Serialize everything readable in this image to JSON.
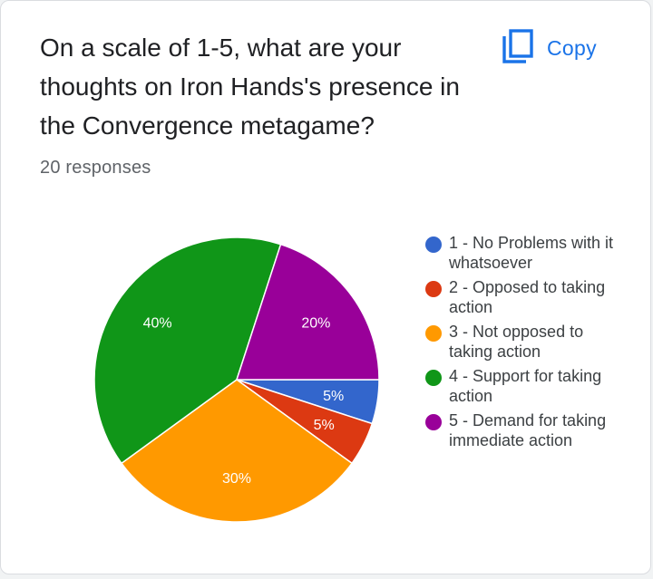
{
  "question": {
    "title": "On a scale of 1-5, what are your\nthoughts on Iron Hands's presence in\nthe Convergence metagame?",
    "responses": "20 responses"
  },
  "copy": {
    "label": "Copy",
    "icon": "copy-icon"
  },
  "colors": {
    "accent": "#1a73e8",
    "slices": [
      "#3366cc",
      "#dc3912",
      "#ff9900",
      "#109618",
      "#990099"
    ]
  },
  "chart_data": {
    "type": "pie",
    "title": "On a scale of 1-5, what are your thoughts on Iron Hands's presence in the Convergence metagame?",
    "total_responses": 20,
    "start_position": "3 o'clock",
    "direction": "clockwise",
    "legend_position": "right",
    "labels": [
      "1 - No Problems with it whatsoever",
      "2 - Opposed to taking action",
      "3 - Not opposed to taking action",
      "4 - Support for taking action",
      "5 - Demand for taking immediate action"
    ],
    "values": [
      5,
      5,
      30,
      40,
      20
    ],
    "slice_labels": [
      "5%",
      "5%",
      "30%",
      "40%",
      "20%"
    ]
  }
}
